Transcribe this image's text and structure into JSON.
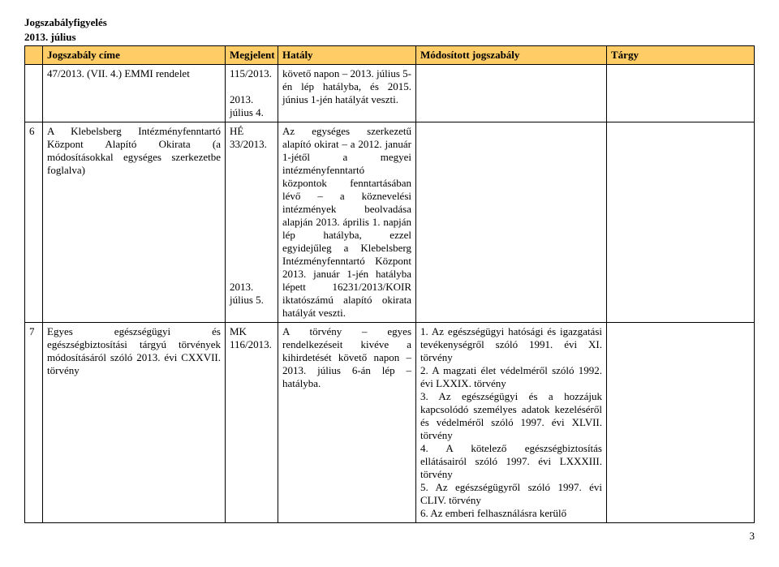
{
  "header": {
    "line1": "Jogszabályfigyelés",
    "line2": "2013. július"
  },
  "table": {
    "headers": {
      "num": "",
      "title": "Jogszabály címe",
      "published": "Megjelent",
      "effective": "Hatály",
      "modified": "Módosított jogszabály",
      "subject": "Tárgy"
    },
    "rows": [
      {
        "num": "",
        "title": "47/2013. (VII. 4.) EMMI rendelet",
        "published": "115/2013.\n\n2013. július 4.",
        "effective": "követő napon – 2013. július 5-én lép hatályba, és 2015. június 1-jén hatályát veszti.",
        "modified": "",
        "subject": ""
      },
      {
        "num": "6",
        "title": "A Klebelsberg Intézményfenntartó Központ Alapító Okirata (a módosításokkal egységes szerkezetbe foglalva)",
        "published": "HÉ 33/2013.\n\n\n\n\n\n\n\n\n\n\n2013. július 5.",
        "effective": "Az egységes szerkezetű alapító okirat – a 2012. január 1-jétől a megyei intézményfenntartó központok fenntartásában lévő – a köznevelési intézmények beolvadása alapján 2013. április 1. napján lép hatályba, ezzel egyidejűleg a Klebelsberg Intézményfenntartó Központ 2013. január 1-jén hatályba lépett 16231/2013/KOIR iktatószámú alapító okirata hatályát veszti.",
        "modified": "",
        "subject": ""
      },
      {
        "num": "7",
        "title": "Egyes egészségügyi és egészségbiztosítási tárgyú törvények módosításáról szóló 2013. évi CXXVII. törvény",
        "published": "MK 116/2013.",
        "effective": "A törvény – egyes rendelkezéseit kivéve a kihirdetését követő napon – 2013. július 6-án lép – hatályba.",
        "modified": "1. Az egészségügyi hatósági és igazgatási tevékenységről szóló 1991. évi XI. törvény\n2. A magzati élet védelméről szóló 1992. évi LXXIX. törvény\n3. Az egészségügyi és a hozzájuk kapcsolódó személyes adatok kezeléséről és védelméről szóló 1997. évi XLVII. törvény\n4. A kötelező egészségbiztosítás ellátásairól szóló 1997. évi LXXXIII. törvény\n5. Az egészségügyről szóló 1997. évi CLIV. törvény\n6. Az emberi felhasználásra kerülő",
        "subject": ""
      }
    ]
  },
  "page_number": "3"
}
